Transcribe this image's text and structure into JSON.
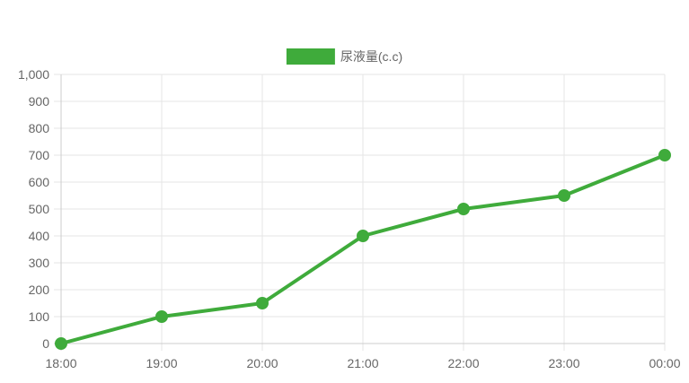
{
  "chart_data": {
    "type": "line",
    "categories": [
      "18:00",
      "19:00",
      "20:00",
      "21:00",
      "22:00",
      "23:00",
      "00:00"
    ],
    "series": [
      {
        "name": "尿液量(c.c)",
        "values": [
          0,
          100,
          150,
          400,
          500,
          550,
          700
        ],
        "color": "#3fab3b"
      }
    ],
    "ylim": [
      0,
      1000
    ],
    "yticks": [
      0,
      100,
      200,
      300,
      400,
      500,
      600,
      700,
      800,
      900,
      1000
    ],
    "ytick_labels": [
      "0",
      "100",
      "200",
      "300",
      "400",
      "500",
      "600",
      "700",
      "800",
      "900",
      "1,000"
    ],
    "grid": true,
    "legend_position": "top-center",
    "grid_color": "#e5e5e5",
    "axis_color": "#cccccc",
    "text_color": "#666666"
  }
}
